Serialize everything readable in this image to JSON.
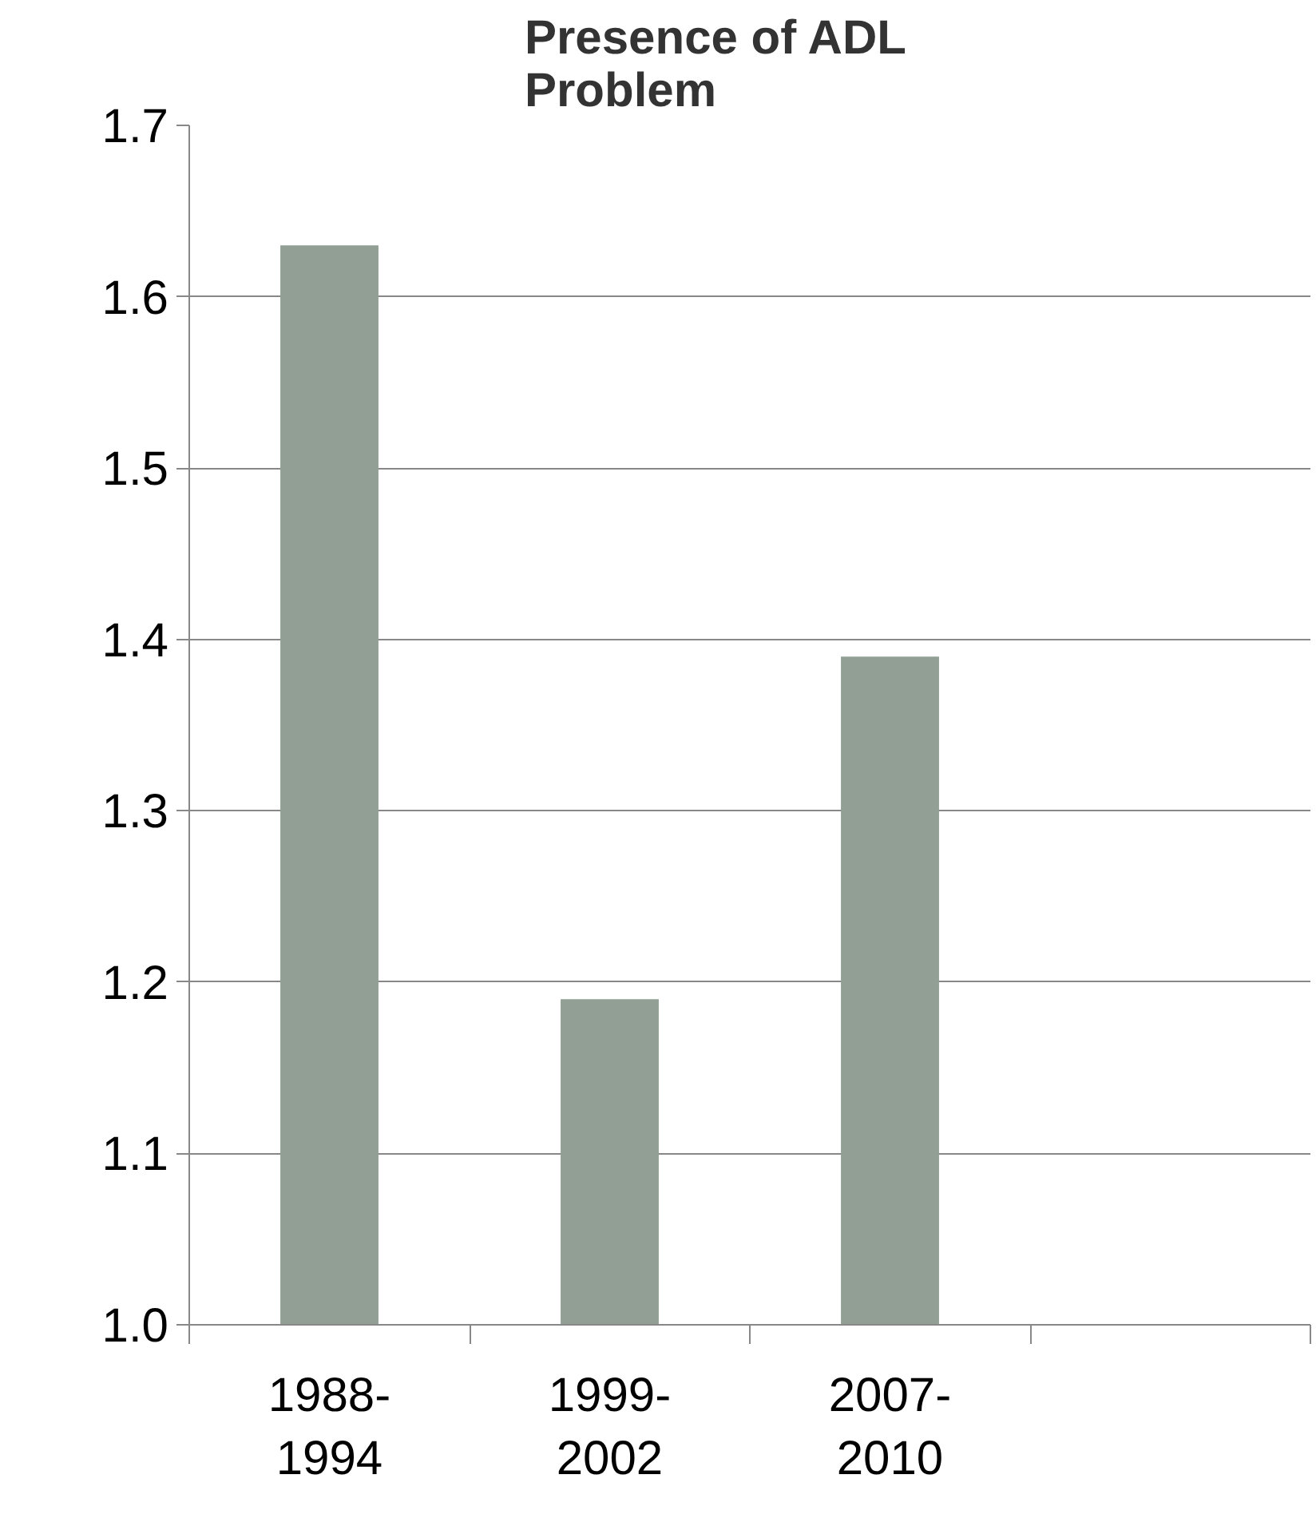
{
  "chart_data": {
    "type": "bar",
    "title": "Presence of ADL Problem",
    "categories": [
      "1988-1994",
      "1999-2002",
      "2007-2010",
      null
    ],
    "values": [
      1.63,
      1.19,
      1.39,
      null
    ],
    "color": "#919f94",
    "ylim": [
      1.0,
      1.7
    ],
    "yticks": [
      {
        "value": 1.0,
        "label": "1.0"
      },
      1.1,
      1.2,
      1.3,
      1.4,
      1.5,
      1.6,
      1.7
    ],
    "grid": "y"
  }
}
